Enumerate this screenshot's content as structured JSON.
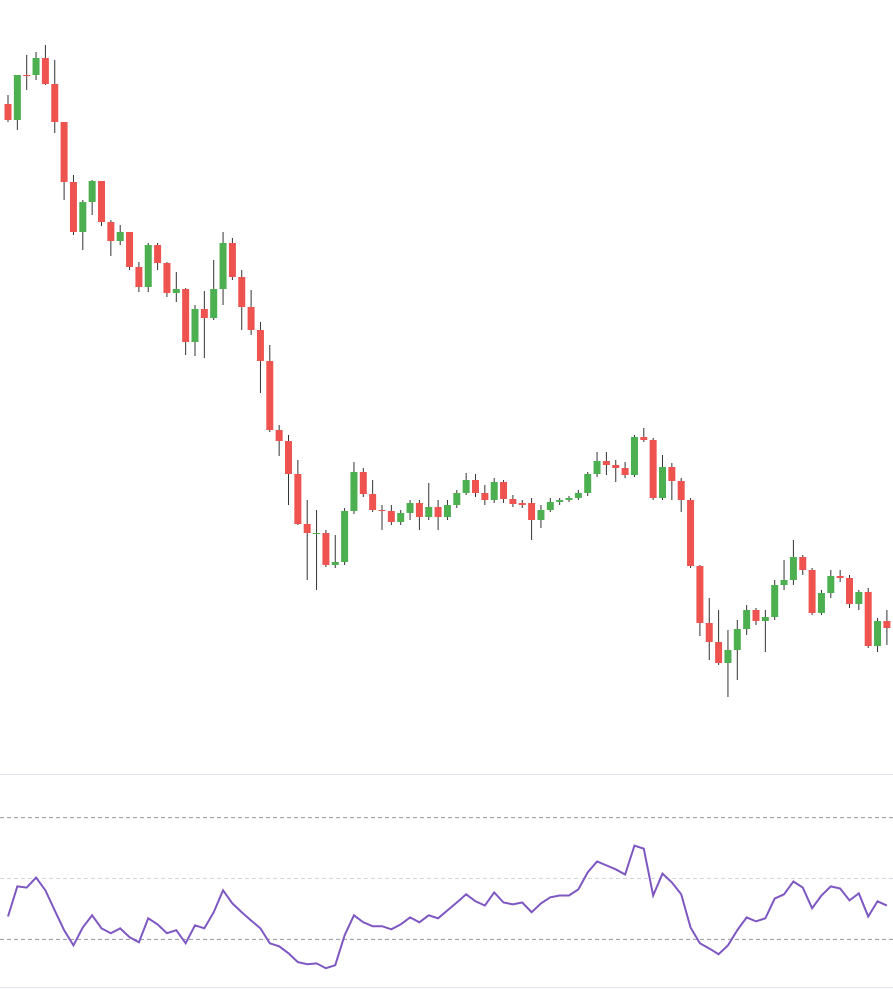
{
  "chart_data": [
    {
      "type": "candlestick",
      "up_color": "#4caf50",
      "down_color": "#ef5350",
      "ylim": [
        0,
        775
      ],
      "open": [
        671,
        655,
        700,
        700,
        717,
        691,
        653,
        593,
        543,
        573,
        594,
        553,
        534,
        543,
        508,
        488,
        530,
        512,
        482,
        486,
        433,
        466,
        457,
        486,
        532,
        498,
        468,
        445,
        414,
        345,
        334,
        301,
        251,
        242,
        242,
        210,
        213,
        264,
        303,
        281,
        265,
        264,
        253,
        262,
        272,
        258,
        268,
        258,
        270,
        282,
        295,
        282,
        275,
        293,
        276,
        272,
        272,
        255,
        265,
        273,
        275,
        277,
        282,
        301,
        314,
        310,
        307,
        300,
        338,
        335,
        277,
        308,
        294,
        275,
        209,
        152,
        133,
        112,
        125,
        146,
        165,
        154,
        158,
        190,
        195,
        218,
        205,
        162,
        182,
        199,
        197,
        171,
        183,
        129,
        154
      ],
      "high": [
        680,
        700,
        720,
        723,
        730,
        715,
        653,
        600,
        575,
        595,
        594,
        555,
        550,
        543,
        513,
        532,
        532,
        513,
        503,
        487,
        470,
        484,
        515,
        543,
        537,
        505,
        485,
        453,
        430,
        350,
        340,
        315,
        275,
        265,
        245,
        240,
        267,
        313,
        307,
        295,
        270,
        270,
        265,
        275,
        275,
        292,
        275,
        275,
        285,
        302,
        301,
        290,
        297,
        295,
        280,
        275,
        277,
        270,
        277,
        277,
        279,
        285,
        303,
        323,
        323,
        315,
        313,
        340,
        347,
        337,
        320,
        312,
        297,
        277,
        210,
        177,
        165,
        145,
        155,
        170,
        167,
        165,
        195,
        215,
        235,
        220,
        207,
        185,
        205,
        205,
        200,
        185,
        187,
        157,
        165
      ],
      "low": [
        653,
        645,
        685,
        695,
        690,
        642,
        575,
        540,
        525,
        560,
        549,
        519,
        530,
        505,
        483,
        483,
        505,
        478,
        473,
        420,
        419,
        417,
        455,
        470,
        495,
        445,
        440,
        382,
        343,
        319,
        270,
        250,
        195,
        185,
        208,
        207,
        210,
        261,
        278,
        263,
        245,
        250,
        250,
        255,
        245,
        255,
        245,
        255,
        267,
        280,
        278,
        270,
        272,
        272,
        268,
        267,
        235,
        247,
        263,
        270,
        273,
        275,
        279,
        298,
        300,
        293,
        297,
        298,
        333,
        275,
        275,
        275,
        263,
        207,
        139,
        115,
        110,
        78,
        95,
        140,
        150,
        123,
        155,
        185,
        190,
        200,
        160,
        160,
        177,
        193,
        167,
        165,
        127,
        123,
        130
      ],
      "close": [
        655,
        700,
        699,
        717,
        691,
        653,
        593,
        543,
        573,
        594,
        553,
        534,
        543,
        508,
        488,
        530,
        512,
        482,
        486,
        433,
        466,
        457,
        486,
        532,
        498,
        468,
        445,
        414,
        345,
        334,
        301,
        251,
        242,
        242,
        210,
        213,
        264,
        303,
        281,
        265,
        264,
        253,
        262,
        272,
        258,
        268,
        258,
        270,
        282,
        295,
        282,
        275,
        293,
        276,
        271,
        270,
        255,
        265,
        273,
        275,
        277,
        282,
        301,
        314,
        310,
        307,
        300,
        338,
        335,
        277,
        308,
        294,
        275,
        209,
        152,
        133,
        112,
        125,
        146,
        165,
        154,
        158,
        190,
        195,
        218,
        205,
        162,
        182,
        199,
        197,
        171,
        183,
        129,
        154,
        147
      ]
    },
    {
      "type": "line",
      "color": "#7e57c2",
      "ylim": [
        14,
        84
      ],
      "levels": [
        30,
        50,
        70
      ],
      "values": [
        37.5,
        47.4,
        47.0,
        50.3,
        46.1,
        39.5,
        33.0,
        28.0,
        33.9,
        37.9,
        33.6,
        32.0,
        33.6,
        30.7,
        29.0,
        36.9,
        34.9,
        32.0,
        33.0,
        28.7,
        34.6,
        33.6,
        38.9,
        46.1,
        41.8,
        38.9,
        36.2,
        33.6,
        28.7,
        27.7,
        25.4,
        22.5,
        21.8,
        22.1,
        20.5,
        21.5,
        31.3,
        37.9,
        35.6,
        34.3,
        34.3,
        33.3,
        34.9,
        37.2,
        35.6,
        37.9,
        36.9,
        39.5,
        42.1,
        44.8,
        42.5,
        41.1,
        45.4,
        42.1,
        41.5,
        42.1,
        38.9,
        41.8,
        43.8,
        44.4,
        44.4,
        46.4,
        52.0,
        55.6,
        54.3,
        53.0,
        51.3,
        60.8,
        59.8,
        44.4,
        51.6,
        48.7,
        44.8,
        33.9,
        28.7,
        27.0,
        25.1,
        28.0,
        33.0,
        37.2,
        35.9,
        36.9,
        43.4,
        44.8,
        49.0,
        47.0,
        40.2,
        44.4,
        47.4,
        46.7,
        42.8,
        45.1,
        37.5,
        42.5,
        41.1
      ]
    }
  ]
}
